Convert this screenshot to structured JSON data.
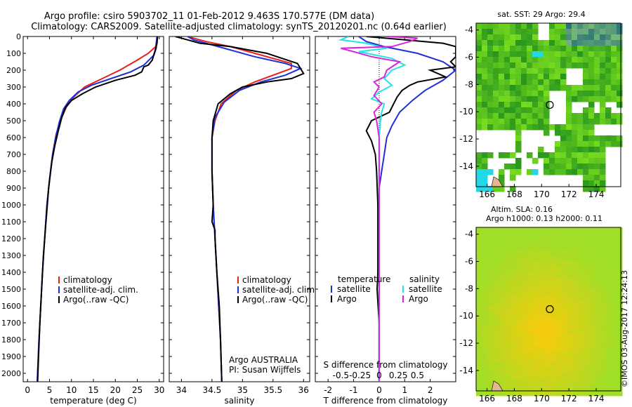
{
  "header": {
    "line1": "Argo profile: csiro 5903702_11 01-Feb-2012 9.463S 170.577E (DM data)",
    "line2": "Climatology: CARS2009. Satellite-adjusted climatology: synTS_20120201.nc (0.64d earlier)"
  },
  "side_label": "©IMOS 03-Aug-2017 12:24:13",
  "colors": {
    "climatology": "#e8201c",
    "satellite": "#1f2fd6",
    "argo": "#000000",
    "cyan": "#22e3e8",
    "magenta": "#dd22dd"
  },
  "chart_data": [
    {
      "type": "line",
      "name": "temperature-profile",
      "xlabel": "temperature (deg C)",
      "ylabel": "",
      "xlim": [
        -1,
        31
      ],
      "ylim": [
        0,
        2050
      ],
      "xticks": [
        "0",
        "5",
        "10",
        "15",
        "20",
        "25",
        "30"
      ],
      "xtick_values": [
        0,
        5,
        10,
        15,
        20,
        25,
        30
      ],
      "yticks": [
        "0",
        "100",
        "200",
        "300",
        "400",
        "500",
        "600",
        "700",
        "800",
        "900",
        "1000",
        "1100",
        "1200",
        "1300",
        "1400",
        "1500",
        "1600",
        "1700",
        "1800",
        "1900",
        "2000"
      ],
      "ytick_values": [
        0,
        100,
        200,
        300,
        400,
        500,
        600,
        700,
        800,
        900,
        1000,
        1100,
        1200,
        1300,
        1400,
        1500,
        1600,
        1700,
        1800,
        1900,
        2000
      ],
      "legend": [
        "climatology",
        "satellite-adj. clim.",
        "Argo(..raw -QC)"
      ],
      "series": [
        {
          "name": "climatology",
          "color": "#e8201c",
          "points": [
            [
              29.5,
              0
            ],
            [
              29.2,
              60
            ],
            [
              27.5,
              100
            ],
            [
              25,
              140
            ],
            [
              21,
              200
            ],
            [
              17,
              250
            ],
            [
              13,
              300
            ],
            [
              10.5,
              360
            ],
            [
              8.8,
              420
            ],
            [
              7.5,
              500
            ],
            [
              6.5,
              580
            ],
            [
              5.7,
              700
            ],
            [
              5,
              850
            ],
            [
              4.4,
              1000
            ],
            [
              3.9,
              1200
            ],
            [
              3.4,
              1400
            ],
            [
              3,
              1600
            ],
            [
              2.6,
              1800
            ],
            [
              2.2,
              2050
            ]
          ]
        },
        {
          "name": "satellite",
          "color": "#1f2fd6",
          "points": [
            [
              29.5,
              0
            ],
            [
              29.3,
              70
            ],
            [
              28.8,
              110
            ],
            [
              26.5,
              170
            ],
            [
              23.5,
              210
            ],
            [
              19,
              250
            ],
            [
              14.5,
              290
            ],
            [
              11.5,
              330
            ],
            [
              9.5,
              380
            ],
            [
              8.2,
              430
            ],
            [
              7.2,
              510
            ],
            [
              6.4,
              600
            ],
            [
              5.7,
              700
            ],
            [
              5,
              850
            ],
            [
              4.4,
              1000
            ],
            [
              3.9,
              1200
            ],
            [
              3.4,
              1400
            ],
            [
              3,
              1600
            ],
            [
              2.6,
              1800
            ],
            [
              2.2,
              2050
            ]
          ]
        },
        {
          "name": "argo",
          "color": "#000000",
          "points": [
            [
              29.6,
              0
            ],
            [
              29.5,
              40
            ],
            [
              29.1,
              80
            ],
            [
              28.4,
              140
            ],
            [
              27.5,
              170
            ],
            [
              26.5,
              180
            ],
            [
              26,
              210
            ],
            [
              24.5,
              230
            ],
            [
              20,
              260
            ],
            [
              15.5,
              300
            ],
            [
              12.5,
              340
            ],
            [
              10,
              380
            ],
            [
              8.7,
              420
            ],
            [
              7.8,
              480
            ],
            [
              7,
              560
            ],
            [
              6.2,
              650
            ],
            [
              5.5,
              750
            ],
            [
              4.8,
              900
            ],
            [
              4.2,
              1100
            ],
            [
              3.6,
              1300
            ],
            [
              3.2,
              1500
            ],
            [
              2.8,
              1700
            ],
            [
              2.5,
              1900
            ],
            [
              2.3,
              2050
            ]
          ]
        }
      ]
    },
    {
      "type": "line",
      "name": "salinity-profile",
      "xlabel": "salinity",
      "xlim": [
        33.8,
        36.1
      ],
      "ylim": [
        0,
        2050
      ],
      "xticks": [
        "34",
        "34.5",
        "35",
        "35.5",
        "36"
      ],
      "xtick_values": [
        34,
        34.5,
        35,
        35.5,
        36
      ],
      "legend": [
        "climatology",
        "satellite-adj. clim.",
        "Argo(..raw -QC)"
      ],
      "annotation": [
        "Argo AUSTRALIA",
        "PI: Susan Wijffels"
      ],
      "series": [
        {
          "name": "climatology",
          "color": "#e8201c",
          "points": [
            [
              34.1,
              0
            ],
            [
              34.4,
              30
            ],
            [
              34.8,
              60
            ],
            [
              35.3,
              110
            ],
            [
              35.8,
              160
            ],
            [
              35.8,
              190
            ],
            [
              35.5,
              230
            ],
            [
              35.2,
              270
            ],
            [
              34.9,
              320
            ],
            [
              34.65,
              400
            ],
            [
              34.55,
              500
            ],
            [
              34.5,
              600
            ],
            [
              34.5,
              800
            ],
            [
              34.52,
              1000
            ],
            [
              34.55,
              1200
            ],
            [
              34.58,
              1400
            ],
            [
              34.61,
              1600
            ],
            [
              34.64,
              1800
            ],
            [
              34.66,
              2050
            ]
          ]
        },
        {
          "name": "satellite",
          "color": "#1f2fd6",
          "points": [
            [
              34.1,
              0
            ],
            [
              34.2,
              20
            ],
            [
              34.6,
              60
            ],
            [
              35.2,
              120
            ],
            [
              35.7,
              160
            ],
            [
              35.95,
              190
            ],
            [
              35.7,
              230
            ],
            [
              35.3,
              270
            ],
            [
              34.95,
              320
            ],
            [
              34.7,
              390
            ],
            [
              34.55,
              480
            ],
            [
              34.5,
              600
            ],
            [
              34.5,
              800
            ],
            [
              34.52,
              1000
            ],
            [
              34.55,
              1200
            ],
            [
              34.58,
              1400
            ],
            [
              34.61,
              1600
            ],
            [
              34.64,
              1800
            ],
            [
              34.66,
              2050
            ]
          ]
        },
        {
          "name": "argo",
          "color": "#000000",
          "points": [
            [
              33.9,
              0
            ],
            [
              34.1,
              20
            ],
            [
              34.3,
              40
            ],
            [
              34.8,
              60
            ],
            [
              35.4,
              100
            ],
            [
              35.9,
              160
            ],
            [
              36.0,
              220
            ],
            [
              35.8,
              250
            ],
            [
              35.4,
              270
            ],
            [
              35.0,
              300
            ],
            [
              34.8,
              340
            ],
            [
              34.6,
              400
            ],
            [
              34.52,
              500
            ],
            [
              34.5,
              600
            ],
            [
              34.5,
              800
            ],
            [
              34.52,
              1000
            ],
            [
              34.5,
              1100
            ],
            [
              34.55,
              1150
            ],
            [
              34.55,
              1200
            ],
            [
              34.58,
              1400
            ],
            [
              34.62,
              1600
            ],
            [
              34.64,
              1800
            ],
            [
              34.66,
              2050
            ]
          ]
        }
      ]
    },
    {
      "type": "line",
      "name": "difference-profile",
      "xlabel": "T difference from climatology",
      "top_label": "S difference from climatology",
      "xlim": [
        -2.5,
        3
      ],
      "ylim": [
        0,
        2050
      ],
      "xticks": [
        "-2",
        "-1",
        "0",
        "1",
        "2"
      ],
      "xtick_values": [
        -2,
        -1,
        0,
        1,
        2
      ],
      "sticks": [
        "-0.5",
        "-0.25",
        "0",
        "0.25",
        "0.5"
      ],
      "stick_values": [
        -1.5,
        -0.75,
        0,
        0.75,
        1.5
      ],
      "legend": {
        "temperature": "temperature",
        "salinity": "salinity",
        "t_items": [
          "satellite",
          "Argo"
        ],
        "s_items": [
          "satellite",
          "Argo"
        ]
      },
      "series": [
        {
          "name": "T satellite",
          "color": "#1f2fd6",
          "points": [
            [
              -0.8,
              0
            ],
            [
              -0.5,
              30
            ],
            [
              0.2,
              60
            ],
            [
              1.5,
              100
            ],
            [
              2.5,
              150
            ],
            [
              3,
              200
            ],
            [
              2.5,
              260
            ],
            [
              1.8,
              320
            ],
            [
              1.3,
              380
            ],
            [
              0.8,
              450
            ],
            [
              0.5,
              530
            ],
            [
              0.3,
              600
            ],
            [
              0.2,
              700
            ],
            [
              0.1,
              800
            ],
            [
              0,
              900
            ],
            [
              0,
              1500
            ],
            [
              0,
              2050
            ]
          ]
        },
        {
          "name": "T Argo",
          "color": "#000000",
          "points": [
            [
              -0.5,
              0
            ],
            [
              1,
              20
            ],
            [
              2.5,
              40
            ],
            [
              3,
              60
            ],
            [
              3,
              120
            ],
            [
              2.8,
              150
            ],
            [
              3,
              180
            ],
            [
              2,
              200
            ],
            [
              2.6,
              240
            ],
            [
              1.5,
              270
            ],
            [
              1.2,
              290
            ],
            [
              0.9,
              320
            ],
            [
              0.7,
              360
            ],
            [
              0.4,
              450
            ],
            [
              -0.3,
              500
            ],
            [
              -0.5,
              560
            ],
            [
              -0.3,
              620
            ],
            [
              -0.15,
              700
            ],
            [
              -0.1,
              800
            ],
            [
              -0.05,
              1000
            ],
            [
              -0.05,
              1400
            ],
            [
              -0.08,
              1500
            ],
            [
              0,
              1700
            ],
            [
              0,
              2050
            ]
          ]
        },
        {
          "name": "S satellite",
          "color": "#22e3e8",
          "points": [
            [
              -1.2,
              0
            ],
            [
              -1.5,
              20
            ],
            [
              -0.5,
              40
            ],
            [
              0.3,
              70
            ],
            [
              -0.8,
              90
            ],
            [
              0.5,
              130
            ],
            [
              1,
              170
            ],
            [
              0.5,
              200
            ],
            [
              0.2,
              250
            ],
            [
              0.5,
              290
            ],
            [
              0,
              330
            ],
            [
              -0.3,
              370
            ],
            [
              0.2,
              400
            ],
            [
              0.1,
              450
            ],
            [
              0.05,
              500
            ],
            [
              0,
              600
            ],
            [
              0,
              2050
            ]
          ]
        },
        {
          "name": "S Argo",
          "color": "#dd22dd",
          "points": [
            [
              0.3,
              0
            ],
            [
              1.5,
              10
            ],
            [
              1.2,
              30
            ],
            [
              0.5,
              60
            ],
            [
              -1.5,
              70
            ],
            [
              -1,
              90
            ],
            [
              -0.3,
              120
            ],
            [
              0.8,
              150
            ],
            [
              0.3,
              200
            ],
            [
              0.2,
              240
            ],
            [
              -0.2,
              270
            ],
            [
              0,
              300
            ],
            [
              -0.2,
              350
            ],
            [
              0.1,
              400
            ],
            [
              -0.2,
              450
            ],
            [
              -0.1,
              500
            ],
            [
              0,
              600
            ],
            [
              0,
              2050
            ]
          ]
        }
      ]
    },
    {
      "type": "heatmap",
      "name": "sst-map",
      "title": "sat. SST: 29 Argo: 29.4",
      "xlim": [
        165.2,
        175.8
      ],
      "ylim": [
        -15.5,
        -3.5
      ],
      "xticks": [
        "166",
        "168",
        "170",
        "172",
        "174"
      ],
      "xtick_values": [
        166,
        168,
        170,
        172,
        174
      ],
      "yticks": [
        "-4",
        "-6",
        "-8",
        "-10",
        "-12",
        "-14"
      ],
      "ytick_values": [
        -4,
        -6,
        -8,
        -10,
        -12,
        -14
      ],
      "marker": [
        170.6,
        -9.5
      ]
    },
    {
      "type": "heatmap",
      "name": "sla-map",
      "title_lines": [
        "Altim. SLA: 0.16",
        "Argo h1000: 0.13 h2000: 0.11"
      ],
      "xlim": [
        165.2,
        175.8
      ],
      "ylim": [
        -15.5,
        -3.5
      ],
      "xticks": [
        "166",
        "168",
        "170",
        "172",
        "174"
      ],
      "xtick_values": [
        166,
        168,
        170,
        172,
        174
      ],
      "yticks": [
        "-4",
        "-6",
        "-8",
        "-10",
        "-12",
        "-14"
      ],
      "ytick_values": [
        -4,
        -6,
        -8,
        -10,
        -12,
        -14
      ],
      "marker": [
        170.6,
        -9.5
      ]
    }
  ]
}
